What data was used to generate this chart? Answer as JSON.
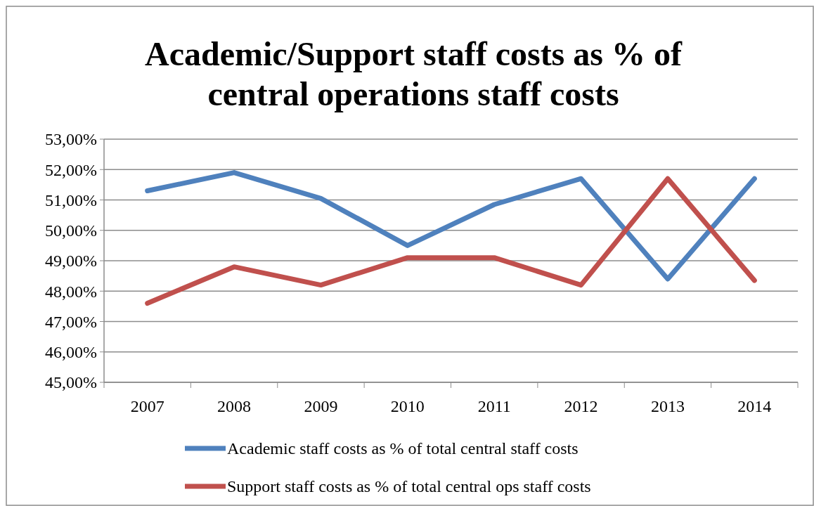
{
  "chart_data": {
    "type": "line",
    "title": "Academic/Support staff costs as % of central operations staff costs",
    "categories": [
      "2007",
      "2008",
      "2009",
      "2010",
      "2011",
      "2012",
      "2013",
      "2014"
    ],
    "series": [
      {
        "name": "Academic staff costs as % of total central staff costs",
        "color": "#4f81bd",
        "values": [
          51.3,
          51.9,
          51.05,
          49.5,
          50.85,
          51.7,
          48.4,
          51.7
        ]
      },
      {
        "name": "Support staff costs as % of total central ops staff costs",
        "color": "#c0504d",
        "values": [
          47.6,
          48.8,
          48.2,
          49.1,
          49.1,
          48.2,
          51.7,
          48.35
        ]
      }
    ],
    "ylim": [
      45,
      53
    ],
    "yticks": [
      {
        "value": 45,
        "label": "45,00%"
      },
      {
        "value": 46,
        "label": "46,00%"
      },
      {
        "value": 47,
        "label": "47,00%"
      },
      {
        "value": 48,
        "label": "48,00%"
      },
      {
        "value": 49,
        "label": "49,00%"
      },
      {
        "value": 50,
        "label": "50,00%"
      },
      {
        "value": 51,
        "label": "51,00%"
      },
      {
        "value": 52,
        "label": "52,00%"
      },
      {
        "value": 53,
        "label": "53,00%"
      }
    ],
    "grid": "y",
    "legend": "bottom",
    "marker": "none",
    "line_style": "solid"
  }
}
